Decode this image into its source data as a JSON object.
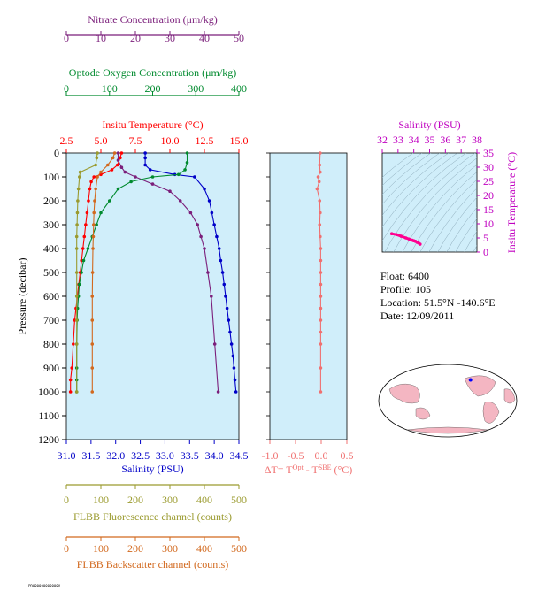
{
  "chart_data": [
    {
      "type": "line",
      "title": "",
      "ylabel": "Pressure (decibar)",
      "ylim": [
        0,
        1200
      ],
      "yticks": [
        0,
        100,
        200,
        300,
        400,
        500,
        600,
        700,
        800,
        900,
        1000,
        1100,
        1200
      ],
      "grid": false,
      "legend": "none",
      "axes": {
        "temperature": {
          "label": "Insitu Temperature (°C)",
          "range": [
            2.5,
            15.0
          ],
          "ticks": [
            "2.5",
            "5.0",
            "7.5",
            "10.0",
            "12.5",
            "15.0"
          ],
          "color": "#ff0000"
        },
        "salinity": {
          "label": "Salinity (PSU)",
          "range": [
            31.0,
            34.5
          ],
          "ticks": [
            "31.0",
            "31.5",
            "32.0",
            "32.5",
            "33.0",
            "33.5",
            "34.0",
            "34.5"
          ],
          "color": "#0000c8"
        },
        "nitrate": {
          "label": "Nitrate Concentration (μm/kg)",
          "range": [
            0,
            50
          ],
          "ticks": [
            "0",
            "10",
            "20",
            "30",
            "40",
            "50"
          ],
          "color": "#7b1f7b"
        },
        "oxygen": {
          "label": "Optode Oxygen Concentration (μm/kg)",
          "range": [
            0,
            400
          ],
          "ticks": [
            "0",
            "100",
            "200",
            "300",
            "400"
          ],
          "color": "#008a2e"
        },
        "fluorescence": {
          "label": "FLBB Fluorescence channel (counts)",
          "range": [
            0,
            500
          ],
          "ticks": [
            "0",
            "100",
            "200",
            "300",
            "400",
            "500"
          ],
          "color": "#9a9a2e"
        },
        "backscatter": {
          "label": "FLBB Backscatter channel (counts)",
          "range": [
            0,
            500
          ],
          "ticks": [
            "0",
            "100",
            "200",
            "300",
            "400",
            "500"
          ],
          "color": "#d2691e"
        }
      },
      "series": [
        {
          "axis": "temperature",
          "color": "#ff0000",
          "x": [
            6.5,
            6.4,
            6.2,
            5.8,
            5.0,
            4.5,
            4.3,
            4.2,
            4.1,
            4.0,
            3.9,
            3.8,
            3.7,
            3.6,
            3.5,
            3.4,
            3.3,
            3.2,
            3.1,
            3.0,
            2.9,
            2.8,
            2.8
          ],
          "y": [
            0,
            20,
            50,
            70,
            90,
            100,
            120,
            150,
            200,
            250,
            300,
            350,
            400,
            450,
            500,
            550,
            600,
            650,
            700,
            800,
            900,
            950,
            1000
          ]
        },
        {
          "axis": "salinity",
          "color": "#0000c8",
          "x": [
            32.6,
            32.6,
            32.6,
            32.7,
            33.2,
            33.6,
            33.8,
            33.9,
            33.95,
            34.0,
            34.05,
            34.1,
            34.13,
            34.17,
            34.2,
            34.23,
            34.26,
            34.29,
            34.32,
            34.35,
            34.38,
            34.4,
            34.42,
            34.44
          ],
          "y": [
            0,
            20,
            50,
            70,
            90,
            100,
            150,
            200,
            250,
            300,
            350,
            400,
            450,
            500,
            550,
            600,
            650,
            700,
            750,
            800,
            850,
            900,
            950,
            1000
          ]
        },
        {
          "axis": "nitrate",
          "color": "#7b1f7b",
          "x": [
            15,
            15,
            16,
            17,
            20,
            25,
            30,
            33,
            36,
            38,
            39,
            40,
            41,
            42,
            43,
            44
          ],
          "y": [
            0,
            30,
            60,
            80,
            100,
            130,
            160,
            200,
            250,
            300,
            350,
            400,
            500,
            600,
            800,
            1000
          ]
        },
        {
          "axis": "oxygen",
          "color": "#008a2e",
          "x": [
            280,
            280,
            275,
            260,
            200,
            150,
            120,
            100,
            80,
            70,
            60,
            50,
            40,
            35,
            30,
            28,
            26,
            25,
            24,
            24,
            24,
            24
          ],
          "y": [
            0,
            40,
            70,
            90,
            100,
            120,
            150,
            200,
            250,
            300,
            350,
            400,
            450,
            500,
            550,
            600,
            650,
            700,
            800,
            900,
            950,
            1000
          ]
        },
        {
          "axis": "fluorescence",
          "color": "#9a9a2e",
          "x": [
            90,
            88,
            85,
            40,
            38,
            35,
            33,
            32,
            31,
            30,
            30,
            30,
            30,
            30,
            30,
            30
          ],
          "y": [
            0,
            20,
            50,
            80,
            100,
            150,
            200,
            250,
            300,
            350,
            400,
            500,
            600,
            700,
            800,
            1000
          ]
        },
        {
          "axis": "backscatter",
          "color": "#d2691e",
          "x": [
            140,
            135,
            120,
            100,
            90,
            85,
            82,
            80,
            79,
            78,
            77,
            76,
            75,
            75,
            75,
            75,
            75
          ],
          "y": [
            0,
            20,
            50,
            80,
            100,
            150,
            200,
            250,
            300,
            350,
            400,
            500,
            600,
            700,
            800,
            900,
            1000
          ]
        }
      ]
    },
    {
      "type": "line",
      "xlabel": "ΔT= T^Opt - T^SBE (°C)",
      "xlim": [
        -1.0,
        0.5
      ],
      "xticks": [
        "-1.0",
        "-0.5",
        "0.0",
        "0.5"
      ],
      "ylim": [
        0,
        1200
      ],
      "color": "#f07070",
      "x": [
        -0.02,
        -0.03,
        -0.02,
        -0.06,
        -0.04,
        -0.08,
        -0.03,
        -0.02,
        -0.03,
        -0.02,
        -0.01,
        -0.01,
        -0.01,
        -0.01,
        -0.01,
        -0.01,
        -0.01,
        -0.01,
        -0.01,
        -0.01,
        -0.01
      ],
      "y": [
        0,
        50,
        80,
        100,
        120,
        150,
        200,
        250,
        300,
        350,
        400,
        450,
        500,
        550,
        600,
        650,
        700,
        750,
        800,
        900,
        1000
      ]
    },
    {
      "type": "scatter",
      "xlabel": "Salinity (PSU)",
      "ylabel": "Insitu Temperature (°C)",
      "xlim": [
        32,
        38
      ],
      "ylim": [
        0,
        35
      ],
      "xticks": [
        "32",
        "33",
        "34",
        "35",
        "36",
        "37",
        "38"
      ],
      "yticks": [
        "0",
        "5",
        "10",
        "15",
        "20",
        "25",
        "30",
        "35"
      ],
      "color": "#ff0090",
      "x": [
        32.6,
        32.9,
        33.2,
        33.5,
        33.7,
        33.9,
        34.0,
        34.1,
        34.2,
        34.3,
        34.4
      ],
      "y": [
        6.5,
        6.2,
        5.6,
        5.0,
        4.6,
        4.2,
        4.0,
        3.8,
        3.5,
        3.2,
        2.8
      ]
    }
  ],
  "info": {
    "float": "Float:  6400",
    "profile": "Profile:  105",
    "location": "Location:  51.5°N  -140.6°E",
    "date": "Date:  12/09/2011"
  },
  "map": {
    "marker_lat": 51.5,
    "marker_lon": -140.6
  },
  "stamp": "PR000000000000V"
}
